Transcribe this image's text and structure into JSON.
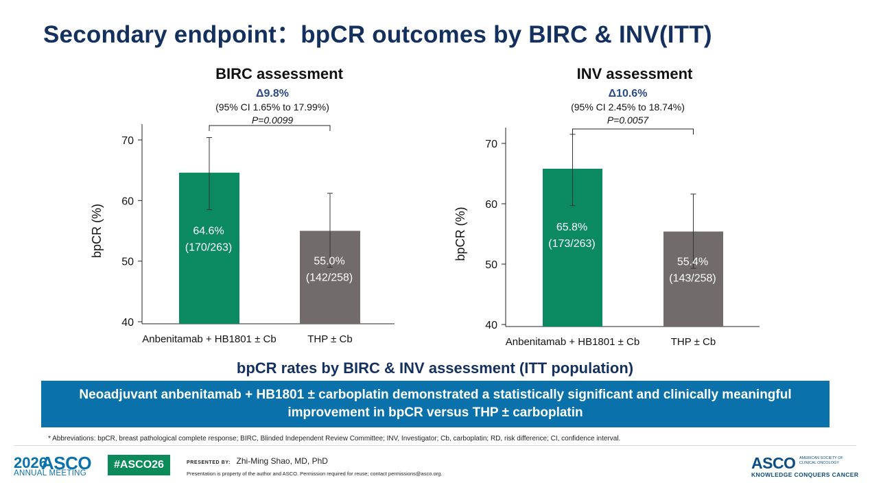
{
  "slide": {
    "title": "Secondary endpoint：bpCR outcomes by BIRC & INV(ITT)",
    "subtitle": "bpCR rates by BIRC & INV assessment (ITT population)",
    "conclusion": "Neoadjuvant anbenitamab + HB1801 ± carboplatin demonstrated a statistically significant and clinically meaningful improvement in bpCR versus THP ± carboplatin",
    "footnote": "* Abbreviations: bpCR, breast pathological complete response; BIRC, Blinded Independent Review Committee; INV, Investigator; Cb, carboplatin; RD, risk difference; CI, confidence interval."
  },
  "footer": {
    "meeting_year": "2026",
    "meeting_asco": "ASCO",
    "meeting_sub": "ANNUAL MEETING",
    "hashtag": "#ASCO26",
    "presented_label": "PRESENTED BY:",
    "presenter": "Zhi-Ming Shao, MD, PhD",
    "disclaimer": "Presentation is property of the author and ASCO. Permission required for reuse; contact permissions@asco.org.",
    "asco": "ASCO",
    "asco_society_1": "AMERICAN SOCIETY OF",
    "asco_society_2": "CLINICAL ONCOLOGY",
    "asco_tagline": "KNOWLEDGE CONQUERS CANCER"
  },
  "colors": {
    "title": "#14305f",
    "bar_treatment": "#0b8a62",
    "bar_control": "#716b6b",
    "conclusion_bg": "#0a71ab",
    "delta": "#2b4a8a"
  },
  "chart_data": [
    {
      "type": "bar",
      "title": "BIRC assessment",
      "delta": "Δ9.8%",
      "ci": "(95% CI 1.65% to 17.99%)",
      "p_value": "P=0.0099",
      "ylabel": "bpCR (%)",
      "ylim": [
        40,
        70
      ],
      "yticks": [
        40,
        50,
        60,
        70
      ],
      "grid": false,
      "categories": [
        "Anbenitamab + HB1801 ±  Cb",
        "THP ±  Cb"
      ],
      "values": [
        64.6,
        55.0
      ],
      "error_low": [
        58.5,
        49.0
      ],
      "error_high": [
        70.4,
        61.2
      ],
      "bar_labels": [
        "64.6%",
        "55.0%"
      ],
      "bar_sublabels": [
        "(170/263)",
        "(142/258)"
      ]
    },
    {
      "type": "bar",
      "title": "INV assessment",
      "delta": "Δ10.6%",
      "ci": "(95% CI 2.45% to 18.74%)",
      "p_value": "P=0.0057",
      "ylabel": "bpCR (%)",
      "ylim": [
        40,
        70
      ],
      "yticks": [
        40,
        50,
        60,
        70
      ],
      "grid": false,
      "categories": [
        "Anbenitamab + HB1801 ±  Cb",
        "THP ±  Cb"
      ],
      "values": [
        65.8,
        55.4
      ],
      "error_low": [
        59.7,
        49.3
      ],
      "error_high": [
        71.5,
        61.6
      ],
      "bar_labels": [
        "65.8%",
        "55.4%"
      ],
      "bar_sublabels": [
        "(173/263)",
        "(143/258)"
      ]
    }
  ]
}
